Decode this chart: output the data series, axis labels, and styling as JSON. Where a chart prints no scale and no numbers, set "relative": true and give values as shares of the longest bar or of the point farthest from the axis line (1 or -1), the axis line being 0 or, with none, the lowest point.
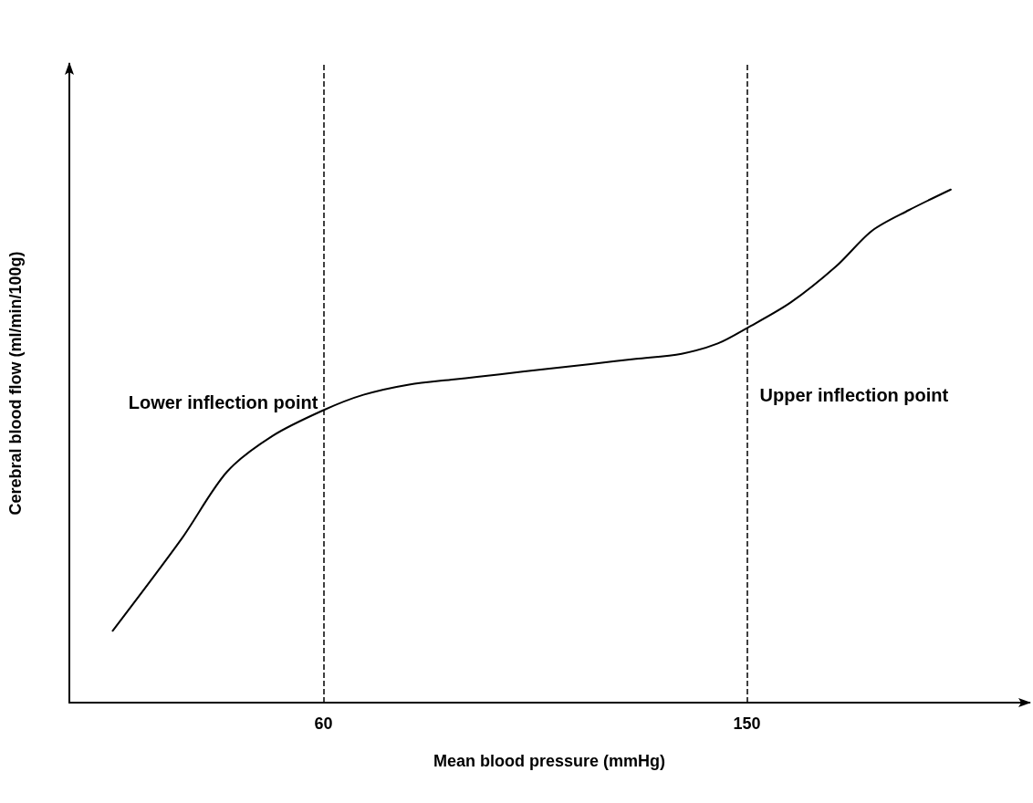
{
  "chart_data": {
    "type": "line",
    "relative": true,
    "xlabel": "Mean blood pressure (mmHg)",
    "ylabel": "Cerebral blood flow (ml/min/100g)",
    "x": [
      15.2,
      29.9,
      39.5,
      49.2,
      60,
      68.5,
      78.2,
      87.8,
      97.5,
      107.1,
      116.8,
      126.4,
      136.1,
      143.8,
      150,
      159.3,
      168.9,
      176.6,
      184.4,
      193.3
    ],
    "series": [
      {
        "color": "#000000",
        "values": [
          0.14,
          0.32,
          0.45,
          0.52,
          0.57,
          0.6,
          0.62,
          0.63,
          0.64,
          0.65,
          0.66,
          0.67,
          0.68,
          0.7,
          0.73,
          0.78,
          0.85,
          0.92,
          0.96,
          1
        ]
      }
    ],
    "xlim": [
      6,
      210
    ],
    "xticks": [
      60,
      150
    ],
    "grid": false,
    "marker": "none",
    "line_style": "solid",
    "ref_lines": [
      {
        "axis": "x",
        "value": 60,
        "color": "#000000",
        "line_style": "dashed"
      },
      {
        "axis": "x",
        "value": 150,
        "color": "#000000",
        "line_style": "dashed"
      }
    ],
    "annotations": [
      {
        "text": "Lower inflection point",
        "x": 60,
        "y": 0.585
      },
      {
        "text": "Upper inflection point",
        "x": 150,
        "y": 0.6
      }
    ]
  }
}
